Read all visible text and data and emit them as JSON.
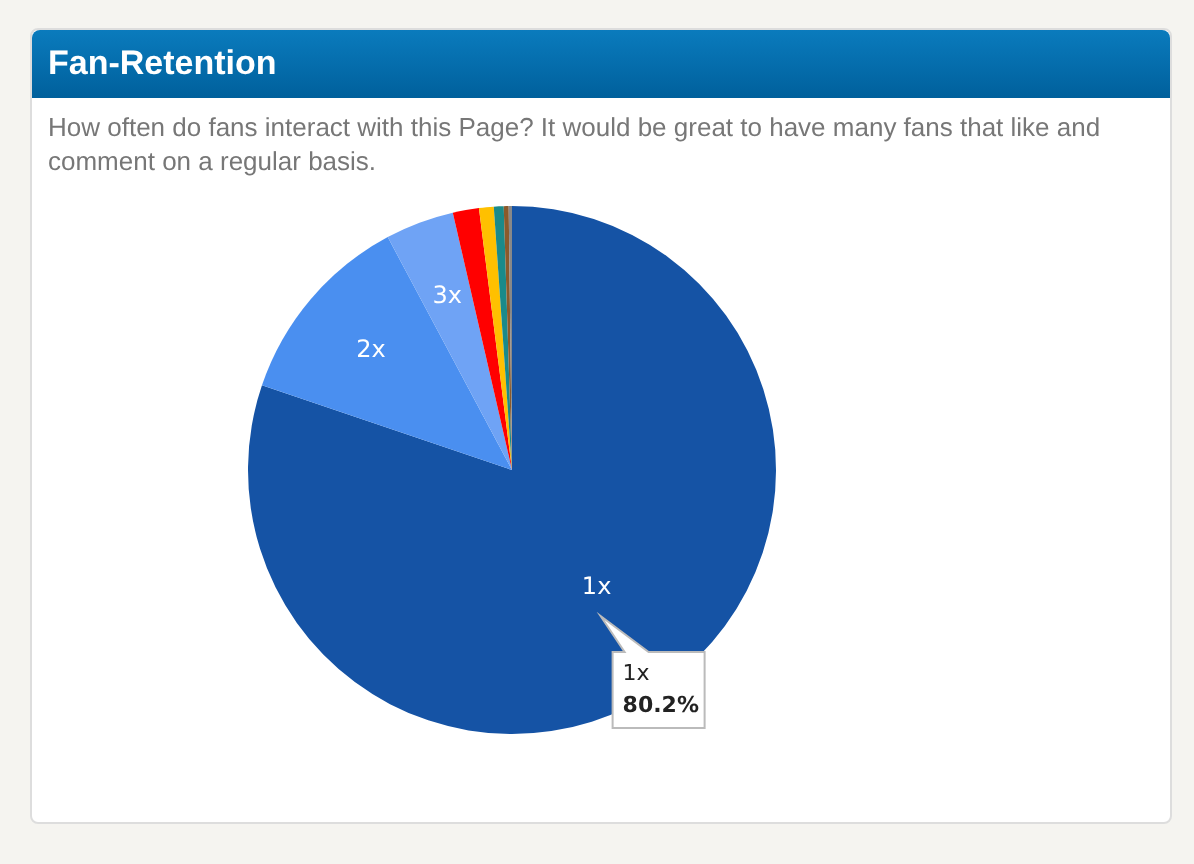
{
  "chart_data": {
    "type": "pie",
    "title": "Fan-Retention",
    "subtitle": "How often do fans interact with this Page? It would be great to have many fans that like and comment on a regular basis.",
    "categories": [
      "1x",
      "2x",
      "3x",
      null,
      null,
      null,
      null,
      null
    ],
    "values": [
      80.2,
      12,
      4.2,
      1.6,
      0.9,
      0.6,
      0.3,
      0.2
    ],
    "colors": [
      "#1553a5",
      "#4a8ff0",
      "#6fa3f5",
      "#ff0000",
      "#ffc000",
      "#1a8a8a",
      "#8b5a2b",
      "#888888"
    ],
    "value_labels": [
      "80.2%",
      null,
      null,
      null,
      null,
      null,
      null,
      null
    ],
    "legend": false
  }
}
